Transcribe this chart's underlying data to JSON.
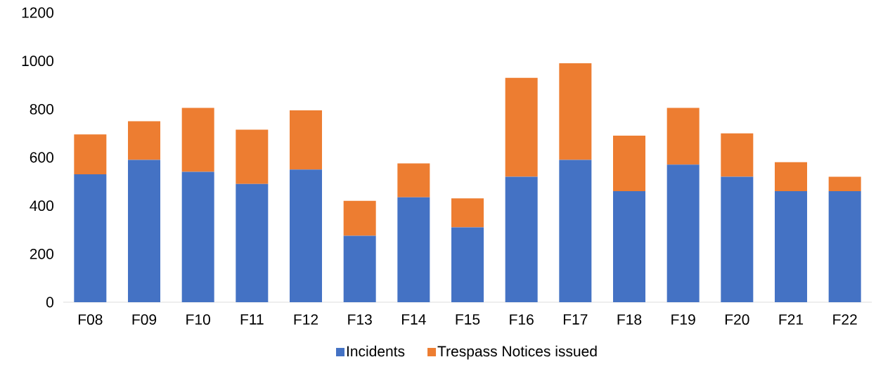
{
  "chart_data": {
    "type": "bar",
    "stacked": true,
    "legend": "bottom",
    "categories": [
      "F08",
      "F09",
      "F10",
      "F11",
      "F12",
      "F13",
      "F14",
      "F15",
      "F16",
      "F17",
      "F18",
      "F19",
      "F20",
      "F21",
      "F22"
    ],
    "series": [
      {
        "name": "Incidents",
        "color": "#4472c4",
        "values": [
          530,
          590,
          540,
          490,
          550,
          275,
          435,
          310,
          520,
          590,
          460,
          570,
          520,
          460,
          460
        ]
      },
      {
        "name": "Trespass Notices issued",
        "color": "#ed7d31",
        "values": [
          165,
          160,
          265,
          225,
          245,
          145,
          140,
          120,
          410,
          400,
          230,
          235,
          180,
          120,
          60
        ]
      }
    ],
    "ylim": [
      0,
      1200
    ],
    "yticks": [
      0,
      200,
      400,
      600,
      800,
      1000,
      1200
    ]
  }
}
